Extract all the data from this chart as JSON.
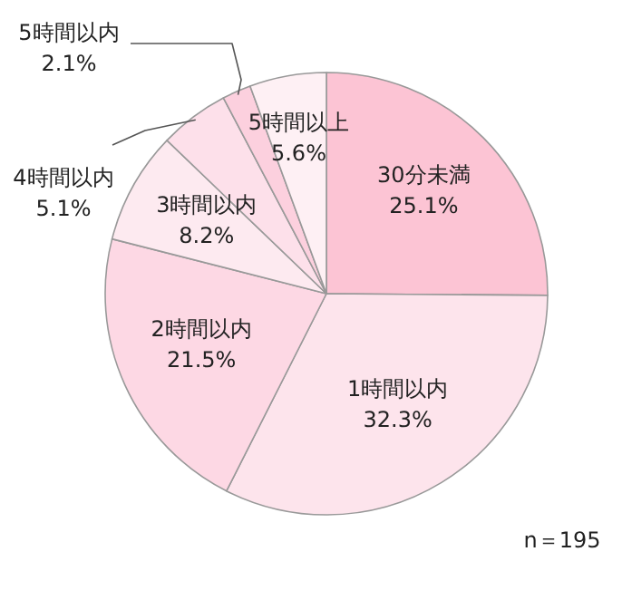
{
  "chart_data": {
    "type": "pie",
    "categories": [
      "30分未満",
      "1時間以内",
      "2時間以内",
      "3時間以内",
      "4時間以内",
      "5時間以内",
      "5時間以上"
    ],
    "values": [
      25.1,
      32.3,
      21.5,
      8.2,
      5.1,
      2.1,
      5.6
    ],
    "colors": [
      "#fcc4d4",
      "#fde4ec",
      "#fdd8e4",
      "#fdeaf0",
      "#fde0ea",
      "#fcd0de",
      "#fef0f4"
    ],
    "value_labels": [
      "25.1%",
      "32.3%",
      "21.5%",
      "8.2%",
      "5.1%",
      "2.1%",
      "5.6%"
    ],
    "annotations": [
      "n＝195"
    ]
  }
}
